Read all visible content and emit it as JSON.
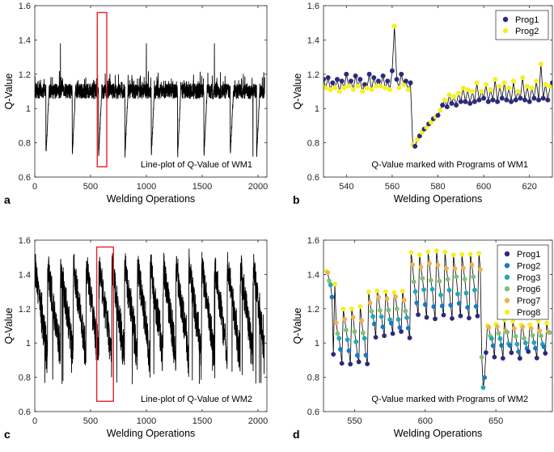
{
  "chart_data": [
    {
      "id": "a",
      "type": "line",
      "panel_label": "a",
      "annotation": "Line-plot of Q-Value of WM1",
      "xlabel": "Welding Operations",
      "ylabel": "Q-Value",
      "xlim": [
        0,
        2080
      ],
      "ylim": [
        0.6,
        1.6
      ],
      "xticks": [
        0,
        500,
        1000,
        1500,
        2000
      ],
      "yticks": [
        0.6,
        0.8,
        1.0,
        1.2,
        1.4,
        1.6
      ],
      "highlight": {
        "x": [
          560,
          645
        ],
        "y": [
          0.66,
          1.56
        ],
        "color": "#e8202a"
      },
      "series": [
        {
          "name": "WM1",
          "color": "#000000",
          "generator": {
            "seed": 11,
            "n": 2060,
            "base": 1.1,
            "noise": 0.045,
            "spikeHigh": 0.08,
            "dipCycle": 236,
            "dipStart": 100,
            "dipDepth": 0.3,
            "dipFloor": 0.72,
            "recover": 28,
            "extraPeak": {
              "x": 560,
              "y": 1.48
            }
          }
        }
      ]
    },
    {
      "id": "b",
      "type": "line",
      "panel_label": "b",
      "annotation": "Q-Value marked with Programs of WM1",
      "xlabel": "Welding Operations",
      "ylabel": "Q-Value",
      "xlim": [
        530,
        630
      ],
      "ylim": [
        0.6,
        1.6
      ],
      "xticks": [
        540,
        560,
        580,
        600,
        620
      ],
      "yticks": [
        0.6,
        0.8,
        1.0,
        1.2,
        1.4,
        1.6
      ],
      "legend": {
        "position": "top-right",
        "entries": [
          {
            "name": "Prog1",
            "color": "#2d2a7c"
          },
          {
            "name": "Prog2",
            "color": "#f5f01e"
          }
        ]
      },
      "x": [
        530,
        531,
        532,
        533,
        534,
        535,
        536,
        537,
        538,
        539,
        540,
        541,
        542,
        543,
        544,
        545,
        546,
        547,
        548,
        549,
        550,
        551,
        552,
        553,
        554,
        555,
        556,
        557,
        558,
        559,
        560,
        561,
        562,
        563,
        564,
        565,
        566,
        567,
        568,
        569,
        570,
        571,
        572,
        573,
        574,
        575,
        576,
        577,
        578,
        579,
        580,
        581,
        582,
        583,
        584,
        585,
        586,
        587,
        588,
        589,
        590,
        591,
        592,
        593,
        594,
        595,
        596,
        597,
        598,
        599,
        600,
        601,
        602,
        603,
        604,
        605,
        606,
        607,
        608,
        609,
        610,
        611,
        612,
        613,
        614,
        615,
        616,
        617,
        618,
        619,
        620,
        621,
        622,
        623,
        624,
        625,
        626,
        627,
        628,
        629,
        630
      ],
      "y": [
        1.17,
        1.12,
        1.18,
        1.11,
        1.15,
        1.12,
        1.17,
        1.1,
        1.16,
        1.12,
        1.2,
        1.13,
        1.16,
        1.11,
        1.19,
        1.13,
        1.17,
        1.1,
        1.14,
        1.12,
        1.2,
        1.11,
        1.18,
        1.13,
        1.16,
        1.13,
        1.19,
        1.12,
        1.16,
        1.11,
        1.22,
        1.48,
        1.17,
        1.12,
        1.2,
        1.14,
        1.16,
        1.11,
        1.15,
        0.79,
        0.78,
        0.82,
        0.84,
        0.86,
        0.88,
        0.89,
        0.91,
        0.92,
        0.94,
        0.95,
        0.96,
        0.99,
        1.02,
        1.05,
        1.01,
        1.08,
        1.03,
        1.07,
        1.02,
        1.09,
        1.04,
        1.12,
        1.04,
        1.11,
        1.03,
        1.1,
        1.04,
        1.15,
        1.05,
        1.1,
        1.06,
        1.14,
        1.04,
        1.11,
        1.05,
        1.17,
        1.04,
        1.13,
        1.06,
        1.15,
        1.05,
        1.12,
        1.04,
        1.16,
        1.05,
        1.1,
        1.06,
        1.18,
        1.05,
        1.13,
        1.04,
        1.12,
        1.06,
        1.16,
        1.05,
        1.26,
        1.06,
        1.14,
        1.05,
        1.13,
        1.15
      ],
      "prog": [
        1,
        2,
        1,
        2,
        1,
        2,
        1,
        2,
        1,
        2,
        1,
        2,
        1,
        2,
        1,
        2,
        1,
        2,
        1,
        2,
        1,
        2,
        1,
        2,
        1,
        2,
        1,
        2,
        1,
        2,
        1,
        2,
        1,
        2,
        1,
        2,
        1,
        2,
        1,
        2,
        1,
        2,
        1,
        2,
        1,
        2,
        1,
        2,
        1,
        2,
        1,
        2,
        1,
        2,
        1,
        2,
        1,
        2,
        1,
        2,
        1,
        2,
        1,
        2,
        1,
        2,
        1,
        2,
        1,
        2,
        1,
        2,
        1,
        2,
        1,
        2,
        1,
        2,
        1,
        2,
        1,
        2,
        1,
        2,
        1,
        2,
        1,
        2,
        1,
        2,
        1,
        2,
        1,
        2,
        1,
        2,
        1,
        2,
        1,
        2,
        1
      ]
    },
    {
      "id": "c",
      "type": "line",
      "panel_label": "c",
      "annotation": "Line-plot of Q-Value of WM2",
      "xlabel": "Welding Operations",
      "ylabel": "Q-Value",
      "xlim": [
        0,
        2080
      ],
      "ylim": [
        0.6,
        1.6
      ],
      "xticks": [
        0,
        500,
        1000,
        1500,
        2000
      ],
      "yticks": [
        0.6,
        0.8,
        1.0,
        1.2,
        1.4,
        1.6
      ],
      "highlight": {
        "x": [
          555,
          705
        ],
        "y": [
          0.66,
          1.56
        ],
        "color": "#e8202a"
      },
      "series": [
        {
          "name": "WM2",
          "color": "#000000",
          "generator": {
            "seed": 29,
            "n": 2060,
            "base": 1.05,
            "noise": 0.1,
            "sawCycle": 115,
            "sawLow": 0.86,
            "sawHigh": 1.48,
            "spikeHigh": 0.05,
            "dipFloor": 0.76
          }
        }
      ]
    },
    {
      "id": "d",
      "type": "line",
      "panel_label": "d",
      "annotation": "Q-Value marked with Programs of WM2",
      "xlabel": "Welding Operations",
      "ylabel": "Q-Value",
      "xlim": [
        528,
        690
      ],
      "ylim": [
        0.6,
        1.6
      ],
      "xticks": [
        550,
        600,
        650
      ],
      "yticks": [
        0.6,
        0.8,
        1.0,
        1.2,
        1.4,
        1.6
      ],
      "legend": {
        "position": "top-right",
        "entries": [
          {
            "name": "Prog1",
            "color": "#2d2a7c"
          },
          {
            "name": "Prog2",
            "color": "#1a78c2"
          },
          {
            "name": "Prog3",
            "color": "#22a7b8"
          },
          {
            "name": "Prog6",
            "color": "#80c07a"
          },
          {
            "name": "Prog7",
            "color": "#f0b24a"
          },
          {
            "name": "Prog8",
            "color": "#f5f01e"
          }
        ]
      },
      "generator": {
        "seed": 7,
        "start": 530,
        "end": 688,
        "segments": [
          {
            "x0": 530,
            "x1": 535,
            "lo": 1.25,
            "hi": 1.43
          },
          {
            "x0": 535,
            "x1": 537,
            "lo": 0.92,
            "hi": 1.35
          },
          {
            "x0": 537,
            "x1": 560,
            "lo": 0.88,
            "hi": 1.2
          },
          {
            "x0": 560,
            "x1": 590,
            "lo": 1.05,
            "hi": 1.3
          },
          {
            "x0": 590,
            "x1": 640,
            "lo": 1.15,
            "hi": 1.52
          },
          {
            "x0": 640,
            "x1": 643,
            "lo": 0.74,
            "hi": 1.02
          },
          {
            "x0": 643,
            "x1": 689,
            "lo": 0.93,
            "hi": 1.12
          }
        ],
        "progOrder": [
          8,
          7,
          6,
          3,
          2,
          1
        ]
      }
    }
  ]
}
